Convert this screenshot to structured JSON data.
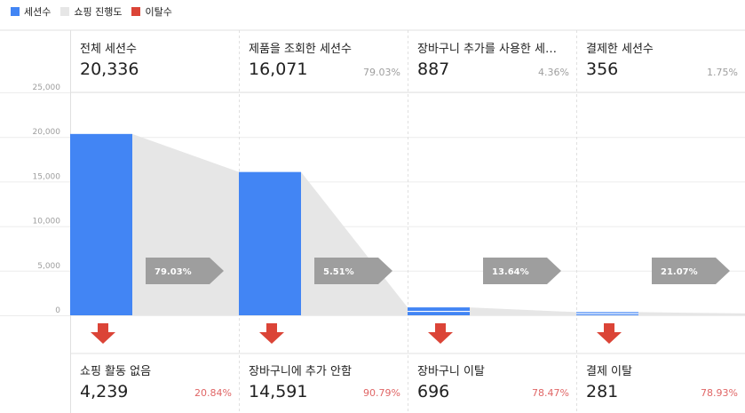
{
  "legend": [
    {
      "label": "세션수",
      "color": "#4285f4"
    },
    {
      "label": "쇼핑 진행도",
      "color": "#e6e6e6"
    },
    {
      "label": "이탈수",
      "color": "#db4437"
    }
  ],
  "stages": [
    {
      "name": "전체 세션수",
      "value": "20,336",
      "pct": ""
    },
    {
      "name": "제품을 조회한 세션수",
      "value": "16,071",
      "pct": "79.03%"
    },
    {
      "name": "장바구니 추가를 사용한 세…",
      "value": "887",
      "pct": "4.36%"
    },
    {
      "name": "결제한 세션수",
      "value": "356",
      "pct": "1.75%"
    }
  ],
  "abandonment": [
    {
      "name": "쇼핑 활동 없음",
      "value": "4,239",
      "pct": "20.84%"
    },
    {
      "name": "장바구니에 추가 안함",
      "value": "14,591",
      "pct": "90.79%"
    },
    {
      "name": "장바구니 이탈",
      "value": "696",
      "pct": "78.47%"
    },
    {
      "name": "결제 이탈",
      "value": "281",
      "pct": "78.93%"
    }
  ],
  "chart_data": {
    "type": "bar",
    "categories": [
      "전체 세션수",
      "제품을 조회한 세션수",
      "장바구니 추가를 사용한 세…",
      "결제한 세션수"
    ],
    "series": [
      {
        "name": "세션수",
        "values": [
          20336,
          16071,
          887,
          356
        ]
      },
      {
        "name": "이탈수",
        "values": [
          4239,
          14591,
          696,
          281
        ]
      }
    ],
    "progression": [
      "79.03%",
      "5.51%",
      "13.64%",
      "21.07%"
    ],
    "ylim": [
      0,
      25000
    ],
    "yticks": [
      "0",
      "5,000",
      "10,000",
      "15,000",
      "20,000",
      "25,000"
    ],
    "grid": true,
    "legend_position": "top-left",
    "colors": {
      "sessions": "#4285f4",
      "progress": "#e6e6e6",
      "dropoff": "#db4437",
      "arrow": "#9e9e9e"
    }
  }
}
